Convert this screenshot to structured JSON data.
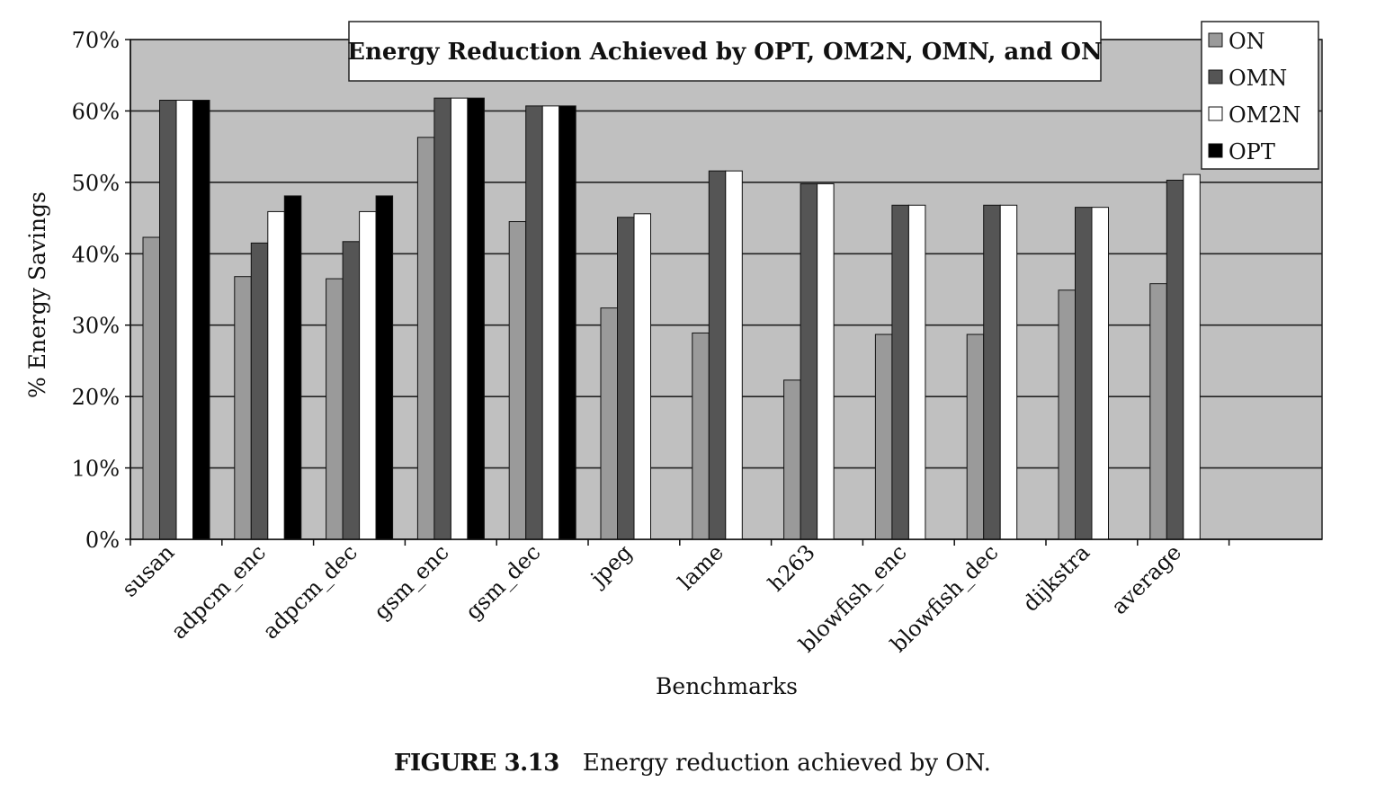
{
  "chart_data": {
    "type": "bar",
    "title": "Energy Reduction Achieved by OPT, OM2N, OMN, and ON",
    "xlabel": "Benchmarks",
    "ylabel": "% Energy Savings",
    "ylim": [
      0,
      70
    ],
    "yticks": [
      "0%",
      "10%",
      "20%",
      "30%",
      "40%",
      "50%",
      "60%",
      "70%"
    ],
    "grid": true,
    "legend_position": "top-right",
    "categories": [
      "susan",
      "adpcm_enc",
      "adpcm_dec",
      "gsm_enc",
      "gsm_dec",
      "jpeg",
      "lame",
      "h263",
      "blowfish_enc",
      "blowfish_dec",
      "dijkstra",
      "average"
    ],
    "series": [
      {
        "name": "ON",
        "color": "#9a9a9a",
        "values": [
          42.3,
          36.8,
          36.5,
          56.3,
          44.5,
          32.4,
          28.9,
          22.3,
          28.7,
          28.7,
          34.9,
          35.8
        ]
      },
      {
        "name": "OMN",
        "color": "#555555",
        "values": [
          61.5,
          41.5,
          41.7,
          61.8,
          60.7,
          45.1,
          51.6,
          49.8,
          46.8,
          46.8,
          46.5,
          50.3
        ]
      },
      {
        "name": "OM2N",
        "color": "#ffffff",
        "values": [
          61.5,
          45.9,
          45.9,
          61.8,
          60.7,
          45.6,
          51.6,
          49.8,
          46.8,
          46.8,
          46.5,
          51.1
        ]
      },
      {
        "name": "OPT",
        "color": "#000000",
        "values": [
          61.5,
          48.1,
          48.1,
          61.8,
          60.7,
          null,
          null,
          null,
          null,
          null,
          null,
          null
        ]
      }
    ],
    "plot_background": "#c0c0c0"
  },
  "caption": {
    "number": "FIGURE 3.13",
    "text": "Energy reduction achieved by ON."
  }
}
